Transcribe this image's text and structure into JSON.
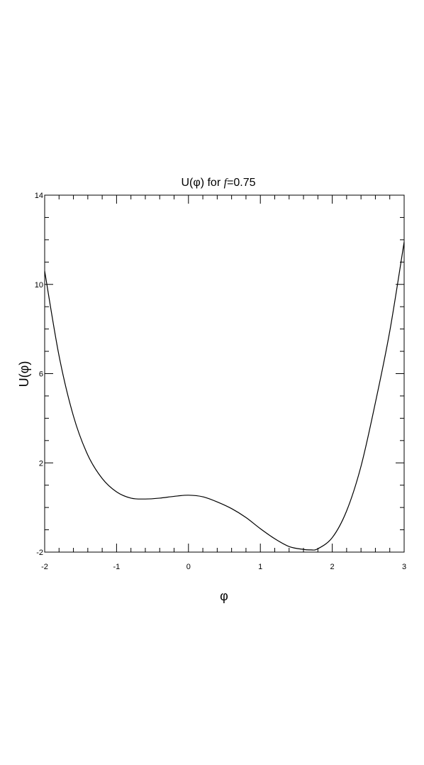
{
  "chart_data": {
    "type": "line",
    "title_prefix": "U(φ) for ",
    "title_param": "f",
    "title_suffix": "=0.75",
    "xlabel": "φ",
    "ylabel": "U(φ)",
    "xlim": [
      -2,
      3
    ],
    "ylim": [
      -2,
      14
    ],
    "xticks": [
      -2,
      -1,
      0,
      1,
      2,
      3
    ],
    "yticks": [
      -2,
      2,
      6,
      10,
      14
    ],
    "x_minor_step": 0.2,
    "y_minor_step": 1,
    "grid": false,
    "line_color": "#000000",
    "series": [
      {
        "x": [
          -2.0,
          -1.8,
          -1.6,
          -1.4,
          -1.2,
          -1.0,
          -0.8,
          -0.6,
          -0.4,
          -0.2,
          0.0,
          0.2,
          0.4,
          0.6,
          0.8,
          1.0,
          1.2,
          1.4,
          1.6,
          1.7,
          1.8,
          2.0,
          2.2,
          2.4,
          2.6,
          2.8,
          3.0
        ],
        "y": [
          10.6,
          6.8,
          4.1,
          2.35,
          1.3,
          0.7,
          0.42,
          0.38,
          0.42,
          0.5,
          0.55,
          0.48,
          0.25,
          -0.05,
          -0.45,
          -0.95,
          -1.4,
          -1.75,
          -1.88,
          -1.9,
          -1.85,
          -1.35,
          -0.15,
          1.85,
          4.7,
          7.9,
          11.9
        ]
      }
    ]
  }
}
